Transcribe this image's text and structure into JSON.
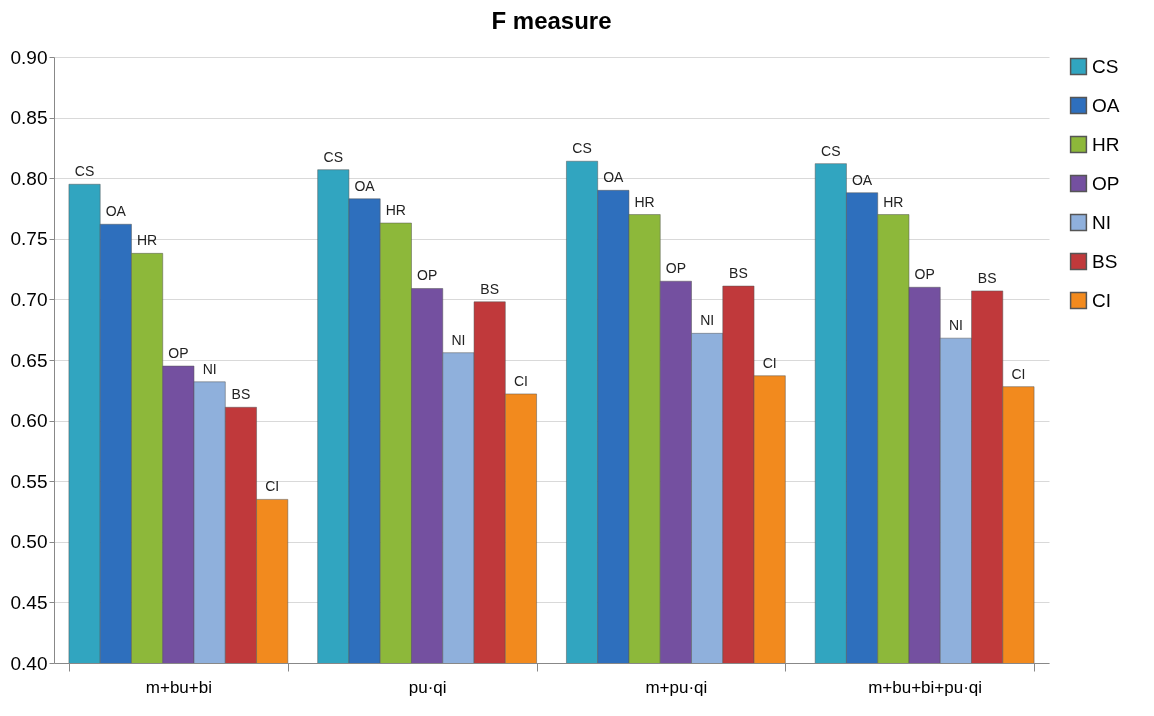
{
  "chart_data": {
    "type": "bar",
    "title": "F measure",
    "categories": [
      "m+bu+bi",
      "pu·qi",
      "m+pu·qi",
      "m+bu+bi+pu·qi"
    ],
    "series": [
      {
        "name": "CS",
        "color": "#31a5c0",
        "values": [
          0.795,
          0.807,
          0.814,
          0.812
        ],
        "value_labels": [
          "CS",
          "CS",
          "CS",
          "CS"
        ]
      },
      {
        "name": "OA",
        "color": "#2e6fbd",
        "values": [
          0.762,
          0.783,
          0.79,
          0.788
        ],
        "value_labels": [
          "OA",
          "OA",
          "OA",
          "OA"
        ]
      },
      {
        "name": "HR",
        "color": "#8db83a",
        "values": [
          0.738,
          0.763,
          0.77,
          0.77
        ],
        "value_labels": [
          "HR",
          "HR",
          "HR",
          "HR"
        ]
      },
      {
        "name": "OP",
        "color": "#7450a0",
        "values": [
          0.645,
          0.709,
          0.715,
          0.71
        ],
        "value_labels": [
          "OP",
          "OP",
          "OP",
          "OP"
        ]
      },
      {
        "name": "NI",
        "color": "#8fb0dc",
        "values": [
          0.632,
          0.656,
          0.672,
          0.668
        ],
        "value_labels": [
          "NI",
          "NI",
          "NI",
          "NI"
        ]
      },
      {
        "name": "BS",
        "color": "#c0393b",
        "values": [
          0.611,
          0.698,
          0.711,
          0.707
        ],
        "value_labels": [
          "BS",
          "BS",
          "BS",
          "BS"
        ]
      },
      {
        "name": "CI",
        "color": "#f28a1e",
        "values": [
          0.535,
          0.622,
          0.637,
          0.628
        ],
        "value_labels": [
          "CI",
          "CI",
          "CI",
          "CI"
        ]
      }
    ],
    "ylim": [
      0.4,
      0.9
    ],
    "yticks": [
      {
        "value": 0.4,
        "label": "0.40"
      },
      {
        "value": 0.45,
        "label": "0.45"
      },
      {
        "value": 0.5,
        "label": "0.50"
      },
      {
        "value": 0.55,
        "label": "0.55"
      },
      {
        "value": 0.6,
        "label": "0.60"
      },
      {
        "value": 0.65,
        "label": "0.65"
      },
      {
        "value": 0.7,
        "label": "0.70"
      },
      {
        "value": 0.75,
        "label": "0.75"
      },
      {
        "value": 0.8,
        "label": "0.80"
      },
      {
        "value": 0.85,
        "label": "0.85"
      },
      {
        "value": 0.9,
        "label": "0.90"
      }
    ],
    "grid": "y",
    "legend": "right"
  }
}
